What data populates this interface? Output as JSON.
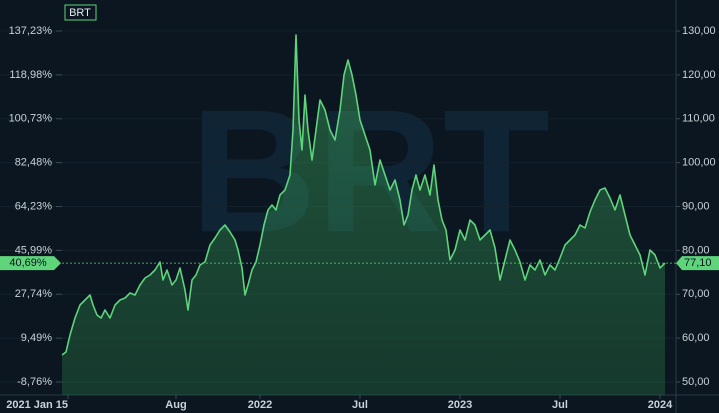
{
  "chart_data": {
    "type": "area",
    "watermark": "BRT",
    "grid": true,
    "x": [
      2021.01,
      2021.03,
      2021.05,
      2021.075,
      2021.1,
      2021.125,
      2021.15,
      2021.165,
      2021.185,
      2021.205,
      2021.225,
      2021.25,
      2021.275,
      2021.3,
      2021.325,
      2021.35,
      2021.375,
      2021.4,
      2021.425,
      2021.45,
      2021.475,
      2021.5,
      2021.515,
      2021.535,
      2021.56,
      2021.58,
      2021.6,
      2021.625,
      2021.64,
      2021.66,
      2021.68,
      2021.7,
      2021.725,
      2021.75,
      2021.775,
      2021.8,
      2021.825,
      2021.85,
      2021.875,
      2021.89,
      2021.91,
      2021.925,
      2021.94,
      2021.96,
      2021.98,
      2022,
      2022.02,
      2022.04,
      2022.06,
      2022.08,
      2022.1,
      2022.125,
      2022.15,
      2022.165,
      2022.18,
      2022.195,
      2022.21,
      2022.225,
      2022.24,
      2022.26,
      2022.28,
      2022.3,
      2022.325,
      2022.35,
      2022.375,
      2022.4,
      2022.42,
      2022.44,
      2022.46,
      2022.48,
      2022.5,
      2022.525,
      2022.55,
      2022.575,
      2022.6,
      2022.625,
      2022.65,
      2022.675,
      2022.7,
      2022.72,
      2022.74,
      2022.76,
      2022.78,
      2022.8,
      2022.825,
      2022.85,
      2022.87,
      2022.89,
      2022.91,
      2022.93,
      2022.95,
      2022.975,
      2023,
      2023.025,
      2023.05,
      2023.075,
      2023.1,
      2023.125,
      2023.15,
      2023.175,
      2023.2,
      2023.225,
      2023.25,
      2023.275,
      2023.3,
      2023.325,
      2023.35,
      2023.375,
      2023.4,
      2023.425,
      2023.45,
      2023.475,
      2023.5,
      2023.525,
      2023.55,
      2023.575,
      2023.6,
      2023.625,
      2023.65,
      2023.675,
      2023.7,
      2023.725,
      2023.75,
      2023.775,
      2023.8,
      2023.825,
      2023.85,
      2023.875,
      2023.9,
      2023.925,
      2023.95,
      2023.975,
      2024,
      2024.025
    ],
    "series": [
      {
        "name": "BRT",
        "color": "#5fd47b",
        "axis": "y2",
        "values": [
          56.15,
          56.84,
          60.71,
          64.59,
          67.55,
          68.69,
          69.83,
          67.55,
          65.27,
          64.59,
          66.41,
          64.59,
          67.55,
          68.69,
          69.15,
          70.29,
          69.83,
          72.11,
          73.7,
          74.39,
          75.53,
          77.35,
          73.25,
          75.53,
          72.11,
          73.25,
          75.98,
          70.97,
          66.41,
          73.25,
          74.39,
          76.67,
          77.35,
          81.23,
          82.82,
          84.64,
          85.78,
          84.19,
          82.36,
          80.09,
          75.98,
          69.83,
          72.11,
          75.53,
          77.35,
          81.23,
          85.78,
          89.2,
          90.34,
          89.2,
          92.62,
          93.76,
          97.18,
          107.44,
          129.09,
          109.72,
          102.88,
          115.41,
          107.44,
          100.6,
          107.44,
          114.27,
          111.99,
          107.44,
          105.16,
          111.99,
          119.97,
          123.39,
          119.97,
          115.41,
          109.72,
          106.3,
          102.88,
          94.9,
          100.6,
          97.18,
          93.76,
          96.04,
          91.48,
          85.78,
          88.06,
          93.76,
          97.18,
          93.76,
          97.18,
          92.62,
          99.46,
          91.48,
          86.92,
          84.64,
          77.81,
          80.09,
          84.64,
          82.36,
          86.92,
          85.78,
          82.36,
          83.5,
          84.64,
          80.54,
          73.25,
          77.81,
          82.36,
          80.09,
          77.35,
          73.25,
          76.67,
          75.53,
          77.81,
          74.39,
          76.67,
          75.53,
          78.26,
          81.23,
          82.36,
          83.5,
          85.78,
          85.1,
          88.75,
          91.48,
          93.76,
          94.22,
          91.94,
          89.2,
          92.62,
          88.06,
          83.5,
          81.23,
          78.95,
          74.39,
          80.09,
          78.95,
          75.98,
          77.1
        ]
      }
    ],
    "xlim": [
      2021.01,
      2024.08
    ],
    "xticks": [
      {
        "value": 2021.04,
        "label": "2021 Jan 15"
      },
      {
        "value": 2021.58,
        "label": "Aug"
      },
      2022,
      {
        "value": 2022.5,
        "label": "Jul"
      },
      2023,
      {
        "value": 2023.5,
        "label": "Jul"
      },
      2024
    ],
    "ylim": [
      -14.16,
      150.12
    ],
    "yticks": [
      {
        "value": 137.23,
        "label": "137,23%"
      },
      {
        "value": 118.98,
        "label": "118,98%"
      },
      {
        "value": 100.73,
        "label": "100,73%"
      },
      {
        "value": 82.48,
        "label": "82,48%"
      },
      {
        "value": 64.23,
        "label": "64,23%"
      },
      {
        "value": 45.99,
        "label": "45,99%"
      },
      {
        "value": 27.74,
        "label": "27,74%"
      },
      {
        "value": 9.49,
        "label": "9,49%"
      },
      {
        "value": -8.76,
        "label": "-8,76%"
      }
    ],
    "y2lim": [
      47.04,
      137.07
    ],
    "y2ticks": [
      {
        "value": 130,
        "label": "130,00"
      },
      {
        "value": 120,
        "label": "120,00"
      },
      {
        "value": 110,
        "label": "110,00"
      },
      {
        "value": 100,
        "label": "100,00"
      },
      {
        "value": 90,
        "label": "90,00"
      },
      {
        "value": 80,
        "label": "80,00"
      },
      {
        "value": 70,
        "label": "70,00"
      },
      {
        "value": 60,
        "label": "60,00"
      },
      {
        "value": 50,
        "label": "50,00"
      }
    ],
    "last_percent": {
      "value": 40.69,
      "label": "40,69%"
    },
    "last_price": {
      "value": 77.1,
      "label": "77,10"
    }
  }
}
